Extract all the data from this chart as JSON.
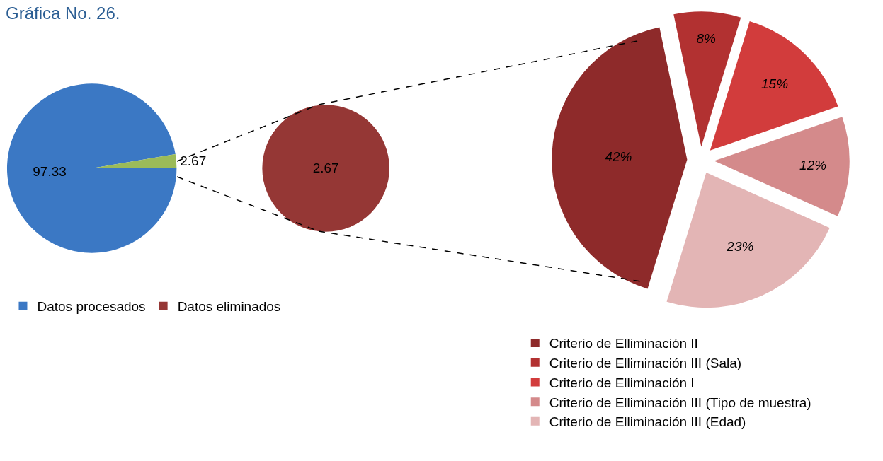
{
  "chart_data": [
    {
      "type": "pie",
      "title": "Gráfica No. 26.",
      "categories": [
        "Datos procesados",
        null
      ],
      "values": [
        97.33,
        2.67
      ],
      "colors": [
        "#3b78c4",
        "#9bbb59"
      ],
      "data_labels": true,
      "legend": "bottom left"
    },
    {
      "type": "pie",
      "categories": [
        "Datos eliminados"
      ],
      "values": [
        2.67
      ],
      "colors": [
        "#953735"
      ],
      "data_labels": true,
      "legend": "bottom left"
    },
    {
      "type": "pie",
      "categories": [
        "Criterio de Elliminación II",
        "Criterio de Elliminación III (Sala)",
        "Criterio de Elliminación I",
        "Criterio de Elliminación III (Tipo de muestra)",
        "Criterio de Elliminación III (Edad)"
      ],
      "values": [
        42,
        8,
        15,
        12,
        23
      ],
      "value_labels": [
        "42%",
        "8%",
        "15%",
        "12%",
        "23%"
      ],
      "colors": [
        "#8e2a2a",
        "#b23131",
        "#d23c3c",
        "#d48a8b",
        "#e3b5b5"
      ],
      "legend": "bottom"
    }
  ]
}
